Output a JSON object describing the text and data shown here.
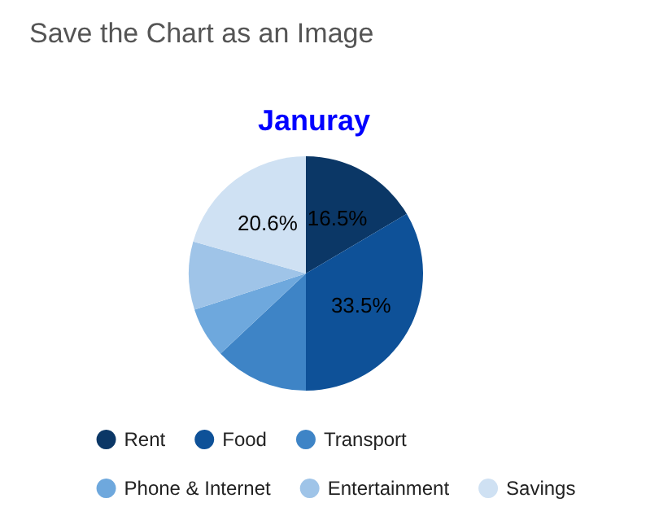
{
  "chart_data": {
    "type": "pie",
    "title": "Januray",
    "annotations": [
      "Save the Chart as an Image"
    ],
    "categories": [
      "Rent",
      "Food",
      "Transport",
      "Phone & Internet",
      "Entertainment",
      "Savings"
    ],
    "values": [
      16.5,
      33.5,
      13,
      7,
      9.4,
      20.6
    ],
    "colors": [
      "#0b3766",
      "#0e5198",
      "#3e84c6",
      "#6ea8dd",
      "#9fc4e8",
      "#cfe1f3"
    ],
    "value_labels": [
      "16.5%",
      "33.5%",
      null,
      null,
      null,
      "20.6%"
    ],
    "legend": "bottom"
  }
}
